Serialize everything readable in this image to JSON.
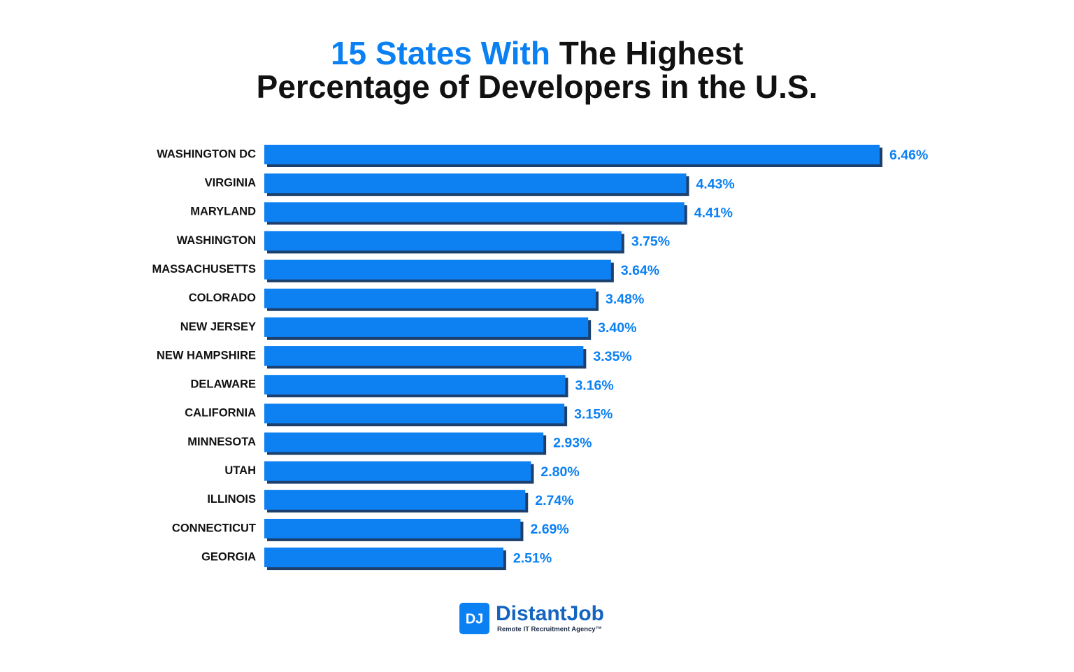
{
  "chart_data": {
    "type": "hbar",
    "title_highlight": "15 States With",
    "title_rest": [
      "The Highest",
      "Percentage of Developers in the U.S."
    ],
    "categories": [
      "WASHINGTON DC",
      "VIRGINIA",
      "MARYLAND",
      "WASHINGTON",
      "MASSACHUSETTS",
      "COLORADO",
      "NEW JERSEY",
      "NEW HAMPSHIRE",
      "DELAWARE",
      "CALIFORNIA",
      "MINNESOTA",
      "UTAH",
      "ILLINOIS",
      "CONNECTICUT",
      "GEORGIA"
    ],
    "values": [
      6.46,
      4.43,
      4.41,
      3.75,
      3.64,
      3.48,
      3.4,
      3.35,
      3.16,
      3.15,
      2.93,
      2.8,
      2.74,
      2.69,
      2.51
    ],
    "value_labels": [
      "6.46%",
      "4.43%",
      "4.41%",
      "3.75%",
      "3.64%",
      "3.48%",
      "3.40%",
      "3.35%",
      "3.16%",
      "3.15%",
      "2.93%",
      "2.80%",
      "2.74%",
      "2.69%",
      "2.51%"
    ],
    "color": "#0b80f2",
    "shadow_color": "#1f3f6e"
  },
  "logo": {
    "mark": "DJ",
    "name": "DistantJob",
    "tagline": "Remote IT Recruitment Agency™"
  }
}
